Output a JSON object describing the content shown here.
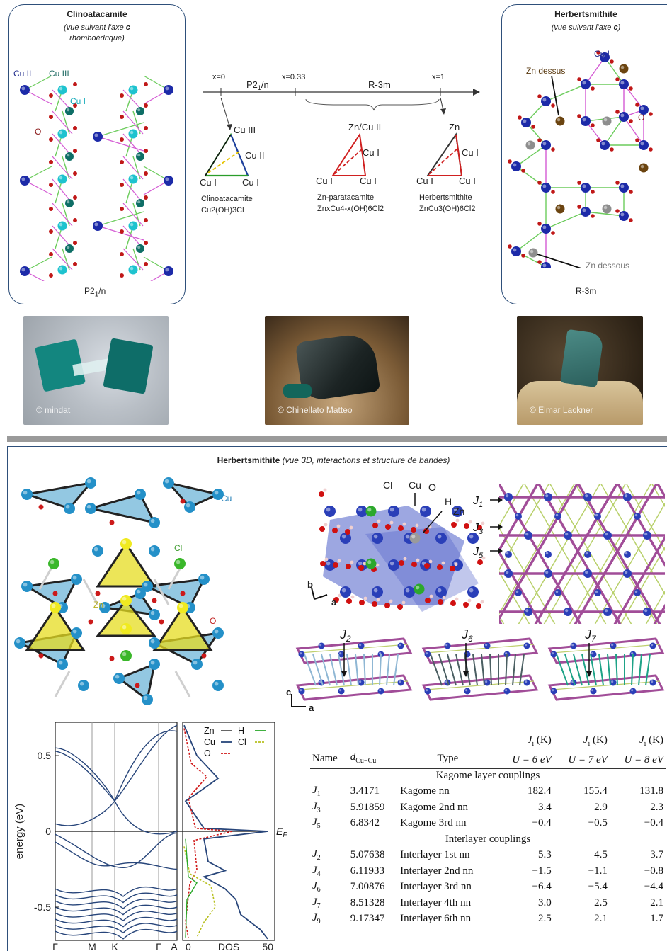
{
  "left_panel": {
    "title": "Clinoatacamite",
    "subtitle_line1": "(vue suivant l'axe ",
    "subtitle_axis": "c",
    "subtitle_line2": "rhomboédrique)",
    "labels": {
      "cu2": "Cu II",
      "cu3": "Cu III",
      "cu1": "Cu I",
      "o": "O"
    },
    "space_group": "P2",
    "space_group_sub": "1",
    "space_group_tail": "/n"
  },
  "right_panel": {
    "title": "Herbertsmithite",
    "subtitle_pre": "(vue suivant l'axe ",
    "subtitle_axis": "c",
    "subtitle_post": ")",
    "labels": {
      "cu1": "Cu I",
      "zn_above": "Zn dessus",
      "o": "O",
      "zn_below": "Zn dessous"
    },
    "space_group": "R-3m"
  },
  "phase_diagram": {
    "ticks": [
      "x=0",
      "x=0.33",
      "x=1"
    ],
    "phase1": "P2",
    "phase1_sub": "1",
    "phase1_tail": "/n",
    "phase2": "R-3m",
    "triangles": [
      {
        "top": "Cu III",
        "right": "Cu II",
        "bl": "Cu I",
        "br": "Cu I",
        "name": "Clinoatacamite",
        "formula": "Cu2(OH)3Cl"
      },
      {
        "top": "Zn/Cu II",
        "right": "Cu I",
        "bl": "Cu I",
        "br": "Cu I",
        "name": "Zn-paratacamite",
        "formula": "ZnxCu4-x(OH)6Cl2"
      },
      {
        "top": "Zn",
        "right": "Cu I",
        "bl": "Cu I",
        "br": "Cu I",
        "name": "Herbertsmithite",
        "formula": "ZnCu3(OH)6Cl2"
      }
    ]
  },
  "photos": [
    {
      "credit": "© mindat",
      "color": "#1a8a86"
    },
    {
      "credit": "© Chinellato Matteo",
      "color": "#2a3436"
    },
    {
      "credit": "© Elmar Lackner",
      "color": "#2f6e6c"
    }
  ],
  "bottom": {
    "title": "Herbertsmithite",
    "subtitle": "(vue 3D, interactions et structure de bandes)",
    "structure_labels": {
      "cu": "Cu",
      "cl": "Cl",
      "zn": "Zn",
      "o": "O"
    },
    "lattice_labels": {
      "cl": "Cl",
      "cu": "Cu",
      "o": "O",
      "h": "H",
      "zn": "Zn",
      "b": "b",
      "a": "a",
      "c": "c"
    },
    "j_labels": [
      "J1",
      "J3",
      "J5",
      "J2",
      "J6",
      "J7"
    ]
  },
  "band_chart": {
    "ylabel": "energy (eV)",
    "yticks": [
      "0.5",
      "0",
      "-0.5"
    ],
    "xticks": [
      "Γ",
      "M",
      "K",
      "Γ",
      "A"
    ],
    "dos_xlabel": "DOS",
    "dos_xticks": [
      "0",
      "50"
    ],
    "fermi": "E",
    "fermi_sub": "F",
    "legend": [
      "Zn",
      "H",
      "Cu",
      "Cl",
      "O"
    ]
  },
  "coupling_table": {
    "headers": [
      "Name",
      "d",
      "Cu−Cu",
      "Type",
      "J",
      "i",
      "(K)",
      "U = 6 eV",
      "U = 7 eV",
      "U = 8 eV"
    ],
    "sections": [
      {
        "name": "Kagome layer couplings",
        "rows": [
          {
            "n": "J",
            "s": "1",
            "d": "3.4171",
            "type": "Kagome nn",
            "u6": "182.4",
            "u7": "155.4",
            "u8": "131.8"
          },
          {
            "n": "J",
            "s": "3",
            "d": "5.91859",
            "type": "Kagome 2nd nn",
            "u6": "3.4",
            "u7": "2.9",
            "u8": "2.3"
          },
          {
            "n": "J",
            "s": "5",
            "d": "6.8342",
            "type": "Kagome 3rd nn",
            "u6": "−0.4",
            "u7": "−0.5",
            "u8": "−0.4"
          }
        ]
      },
      {
        "name": "Interlayer couplings",
        "rows": [
          {
            "n": "J",
            "s": "2",
            "d": "5.07638",
            "type": "Interlayer 1st nn",
            "u6": "5.3",
            "u7": "4.5",
            "u8": "3.7"
          },
          {
            "n": "J",
            "s": "4",
            "d": "6.11933",
            "type": "Interlayer 2nd nn",
            "u6": "−1.5",
            "u7": "−1.1",
            "u8": "−0.8"
          },
          {
            "n": "J",
            "s": "6",
            "d": "7.00876",
            "type": "Interlayer 3rd nn",
            "u6": "−6.4",
            "u7": "−5.4",
            "u8": "−4.4"
          },
          {
            "n": "J",
            "s": "7",
            "d": "8.51328",
            "type": "Interlayer 4th nn",
            "u6": "3.0",
            "u7": "2.5",
            "u8": "2.1"
          },
          {
            "n": "J",
            "s": "9",
            "d": "9.17347",
            "type": "Interlayer 6th nn",
            "u6": "2.5",
            "u7": "2.1",
            "u8": "1.7"
          }
        ]
      }
    ]
  }
}
